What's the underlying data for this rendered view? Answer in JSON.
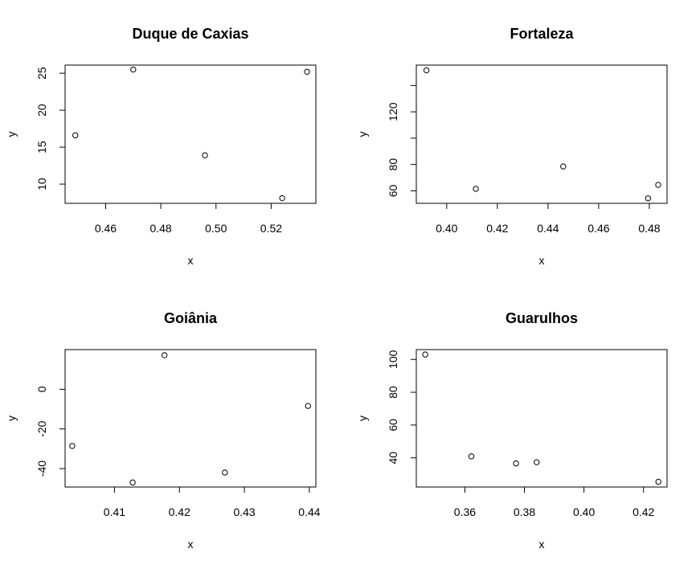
{
  "chart_data": [
    {
      "type": "scatter",
      "title": "Duque de Caxias",
      "xlabel": "x",
      "ylabel": "y",
      "xlim": [
        0.4453,
        0.5362
      ],
      "ylim": [
        7.4,
        26.1
      ],
      "xticks": [
        0.46,
        0.48,
        0.5,
        0.52
      ],
      "xtick_labels": [
        "0.46",
        "0.48",
        "0.50",
        "0.52"
      ],
      "yticks": [
        10,
        15,
        20,
        25
      ],
      "ytick_labels": [
        "10",
        "15",
        "20",
        "25"
      ],
      "points": [
        {
          "x": 0.449,
          "y": 16.6
        },
        {
          "x": 0.47,
          "y": 25.5
        },
        {
          "x": 0.496,
          "y": 13.9
        },
        {
          "x": 0.524,
          "y": 8.1
        },
        {
          "x": 0.533,
          "y": 25.2
        }
      ]
    },
    {
      "type": "scatter",
      "title": "Fortaleza",
      "xlabel": "x",
      "ylabel": "y",
      "xlim": [
        0.388,
        0.487
      ],
      "ylim": [
        50.5,
        155.5
      ],
      "xticks": [
        0.4,
        0.42,
        0.44,
        0.46,
        0.48
      ],
      "xtick_labels": [
        "0.40",
        "0.42",
        "0.44",
        "0.46",
        "0.48"
      ],
      "yticks": [
        60,
        80,
        100,
        120,
        140
      ],
      "ytick_labels": [
        "60",
        "80",
        "",
        "120",
        ""
      ],
      "points": [
        {
          "x": 0.392,
          "y": 151.5
        },
        {
          "x": 0.4115,
          "y": 61.5
        },
        {
          "x": 0.446,
          "y": 78.5
        },
        {
          "x": 0.4795,
          "y": 54.3
        },
        {
          "x": 0.4835,
          "y": 64.5
        }
      ]
    },
    {
      "type": "scatter",
      "title": "Goiânia",
      "xlabel": "x",
      "ylabel": "y",
      "xlim": [
        0.4024,
        0.441
      ],
      "ylim": [
        -49.3,
        20.0
      ],
      "xticks": [
        0.41,
        0.42,
        0.43,
        0.44
      ],
      "xtick_labels": [
        "0.41",
        "0.42",
        "0.43",
        "0.44"
      ],
      "yticks": [
        -40,
        -20,
        0
      ],
      "ytick_labels": [
        "-40",
        "-20",
        "0"
      ],
      "points": [
        {
          "x": 0.4035,
          "y": -28.6
        },
        {
          "x": 0.4128,
          "y": -47.0
        },
        {
          "x": 0.4177,
          "y": 17.2
        },
        {
          "x": 0.427,
          "y": -42.0
        },
        {
          "x": 0.4398,
          "y": -8.4
        }
      ]
    },
    {
      "type": "scatter",
      "title": "Guarulhos",
      "xlabel": "x",
      "ylabel": "y",
      "xlim": [
        0.3437,
        0.4279
      ],
      "ylim": [
        22.2,
        106.0
      ],
      "xticks": [
        0.36,
        0.38,
        0.4,
        0.42
      ],
      "xtick_labels": [
        "0.36",
        "0.38",
        "0.40",
        "0.42"
      ],
      "yticks": [
        40,
        60,
        80,
        100
      ],
      "ytick_labels": [
        "40",
        "60",
        "80",
        "100"
      ],
      "points": [
        {
          "x": 0.3467,
          "y": 103.0
        },
        {
          "x": 0.3622,
          "y": 40.9
        },
        {
          "x": 0.3772,
          "y": 36.6
        },
        {
          "x": 0.3841,
          "y": 37.3
        },
        {
          "x": 0.425,
          "y": 25.4
        }
      ]
    }
  ]
}
